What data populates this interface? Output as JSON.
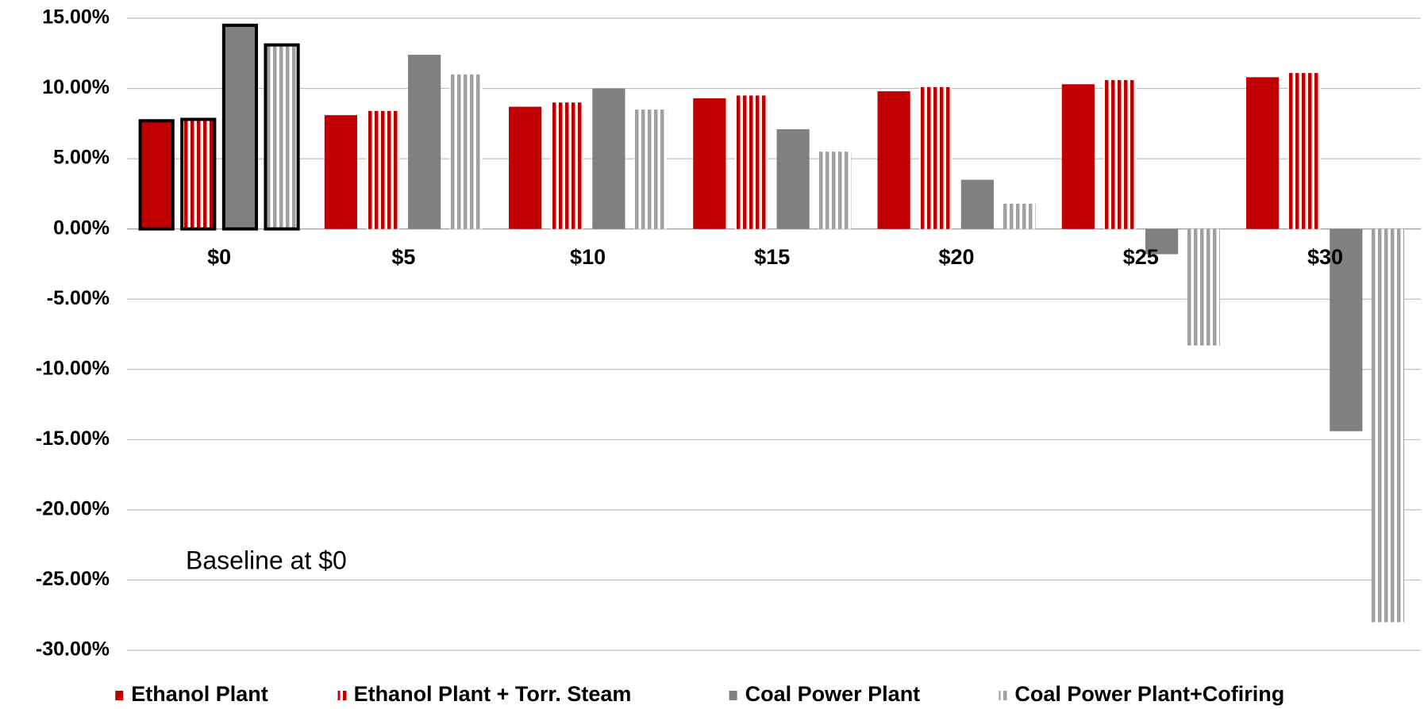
{
  "chart_data": {
    "type": "bar",
    "annotation": "Baseline at $0",
    "categories": [
      "$0",
      "$5",
      "$10",
      "$15",
      "$20",
      "$25",
      "$30"
    ],
    "series": [
      {
        "name": "Ethanol Plant",
        "color": "#c00000",
        "pattern": "solid",
        "values": [
          7.7,
          8.1,
          8.7,
          9.3,
          9.8,
          10.3,
          10.8
        ]
      },
      {
        "name": "Ethanol Plant + Torr. Steam",
        "color": "#c00000",
        "pattern": "vertical-stripes",
        "values": [
          7.8,
          8.4,
          9.0,
          9.5,
          10.1,
          10.6,
          11.1
        ]
      },
      {
        "name": "Coal Power Plant",
        "color": "#808080",
        "pattern": "solid",
        "values": [
          14.5,
          12.4,
          10.0,
          7.1,
          3.5,
          -1.8,
          -14.4
        ]
      },
      {
        "name": "Coal Power Plant+Cofiring",
        "color": "#a0a0a0",
        "pattern": "vertical-stripes",
        "values": [
          13.1,
          11.0,
          8.5,
          5.5,
          1.8,
          -8.3,
          -28.0
        ]
      }
    ],
    "ylim": [
      -30,
      15
    ],
    "yticks": [
      {
        "value": -30,
        "label": "-30.00%"
      },
      {
        "value": -25,
        "label": "-25.00%"
      },
      {
        "value": -20,
        "label": "-20.00%"
      },
      {
        "value": -15,
        "label": "-15.00%"
      },
      {
        "value": -10,
        "label": "-10.00%"
      },
      {
        "value": -5,
        "label": "-5.00%"
      },
      {
        "value": 0,
        "label": "0.00%"
      },
      {
        "value": 5,
        "label": "5.00%"
      },
      {
        "value": 10,
        "label": "10.00%"
      },
      {
        "value": 15,
        "label": "15.00%"
      }
    ],
    "grid": true,
    "legend": "bottom"
  }
}
